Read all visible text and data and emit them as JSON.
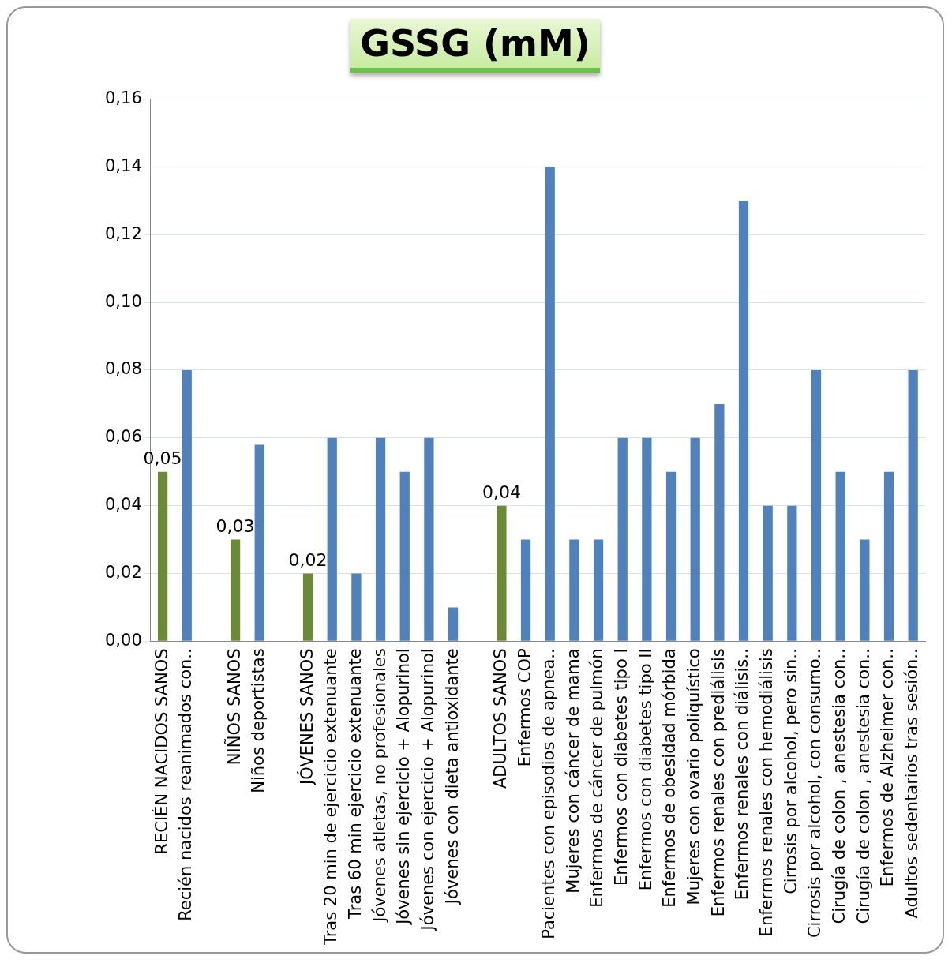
{
  "chart_data": {
    "type": "bar",
    "title": "GSSG  (mM)",
    "categories": [
      "RECIÉN NACIDOS SANOS",
      "Recién nacidos reanimados con..",
      null,
      "NIÑOS SANOS",
      "Niños deportistas",
      null,
      "JÓVENES SANOS",
      "Tras 20 min de ejercicio extenuante",
      "Tras 60 min ejercicio extenuante",
      "Jóvenes atletas, no profesionales",
      "Jóvenes sin ejercicio + Alopurinol",
      "Jóvenes con ejercicio + Alopurinol",
      "Jóvenes con dieta antioxidante",
      null,
      "ADULTOS SANOS",
      "Enfermos COP",
      "Pacientes con episodios de apnea..",
      "Mujeres con cáncer de mama",
      "Enfermos de cáncer de pulmón",
      "Enfermos con diabetes tipo I",
      "Enfermos con diabetes tipo II",
      "Enfermos de obesidad mórbida",
      "Mujeres con ovario poliquístico",
      "Enfermos renales con prediálisis",
      "Enfermos renales con diálisis..",
      "Enfermos renales con hemodiálisis",
      "Cirrosis por alcohol, pero sin..",
      "Cirrosis por alcohol, con consumo..",
      "Cirugía de colon , anestesia con..",
      "Cirugía de colon , anestesia con..",
      "Enfermos de Alzheimer con..",
      "Adultos sedentarios tras sesión.."
    ],
    "values": [
      0.05,
      0.08,
      null,
      0.03,
      0.058,
      null,
      0.02,
      0.06,
      0.02,
      0.06,
      0.05,
      0.06,
      0.01,
      null,
      0.04,
      0.03,
      0.14,
      0.03,
      0.03,
      0.06,
      0.06,
      0.05,
      0.06,
      0.07,
      0.13,
      0.04,
      0.04,
      0.08,
      0.05,
      0.03,
      0.05,
      0.08
    ],
    "colors": [
      "#6b8a35",
      "#4f81bd",
      "#4f81bd",
      "#6b8a35",
      "#4f81bd",
      "#4f81bd",
      "#6b8a35",
      "#4f81bd",
      "#4f81bd",
      "#4f81bd",
      "#4f81bd",
      "#4f81bd",
      "#4f81bd",
      "#4f81bd",
      "#6b8a35",
      "#4f81bd",
      "#4f81bd",
      "#4f81bd",
      "#4f81bd",
      "#4f81bd",
      "#4f81bd",
      "#4f81bd",
      "#4f81bd",
      "#4f81bd",
      "#4f81bd",
      "#4f81bd",
      "#4f81bd",
      "#4f81bd",
      "#4f81bd",
      "#4f81bd",
      "#4f81bd",
      "#4f81bd"
    ],
    "value_labels": [
      "0,05",
      null,
      null,
      "0,03",
      null,
      null,
      "0,02",
      null,
      null,
      null,
      null,
      null,
      null,
      null,
      "0,04",
      null,
      null,
      null,
      null,
      null,
      null,
      null,
      null,
      null,
      null,
      null,
      null,
      null,
      null,
      null,
      null,
      null
    ],
    "ylim": [
      0,
      0.16
    ],
    "yticks": [
      {
        "value": 0,
        "label": "0,00"
      },
      {
        "value": 0.02,
        "label": "0,02"
      },
      {
        "value": 0.04,
        "label": "0,04"
      },
      {
        "value": 0.06,
        "label": "0,06"
      },
      {
        "value": 0.08,
        "label": "0,08"
      },
      {
        "value": 0.1,
        "label": "0,10"
      },
      {
        "value": 0.12,
        "label": "0,12"
      },
      {
        "value": 0.14,
        "label": "0,14"
      },
      {
        "value": 0.16,
        "label": "0,16"
      }
    ],
    "grid": "y",
    "legend": false
  }
}
